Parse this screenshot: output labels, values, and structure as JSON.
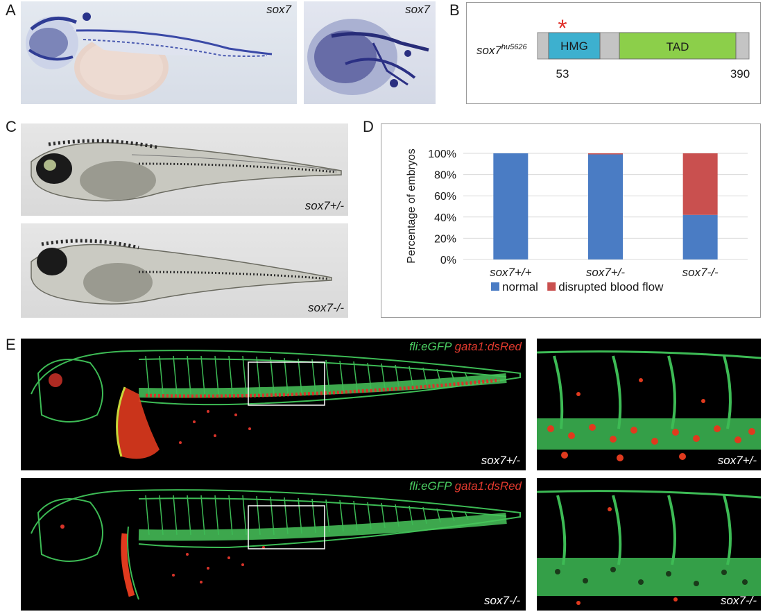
{
  "panels": {
    "A": {
      "label": "A",
      "left_caption": "sox7",
      "right_caption": "sox7"
    },
    "B": {
      "label": "B",
      "gene_name": "sox7",
      "allele": "hu5626",
      "domains": [
        {
          "name": "HMG",
          "color": "#3db0cf"
        },
        {
          "name": "TAD",
          "color": "#8ccf4a"
        }
      ],
      "positions": [
        "53",
        "390"
      ],
      "mutation_marker": "*",
      "mutation_color": "#e0302a"
    },
    "C": {
      "label": "C",
      "top_caption": "sox7+/-",
      "bottom_caption": "sox7-/-"
    },
    "D": {
      "label": "D"
    },
    "E": {
      "label": "E",
      "rows": [
        {
          "marker_green": "fli:eGFP",
          "marker_red": "gata1:dsRed",
          "caption": "sox7+/-",
          "zoom_caption": "sox7+/-"
        },
        {
          "marker_green": "fli:eGFP",
          "marker_red": "gata1:dsRed",
          "caption": "sox7-/-",
          "zoom_caption": "sox7-/-"
        }
      ]
    }
  },
  "chart_data": {
    "type": "bar",
    "stacked": true,
    "categories": [
      "sox7+/+",
      "sox7+/-",
      "sox7-/-"
    ],
    "series": [
      {
        "name": "normal",
        "color": "#4a7cc4",
        "values": [
          100,
          99,
          42
        ]
      },
      {
        "name": "disrupted blood flow",
        "color": "#c9504f",
        "values": [
          0,
          1,
          58
        ]
      }
    ],
    "ylabel": "Percentage of embryos",
    "yticks": [
      "0%",
      "20%",
      "40%",
      "60%",
      "80%",
      "100%"
    ],
    "ylim": [
      0,
      100
    ],
    "grid": true,
    "legend_position": "bottom"
  }
}
